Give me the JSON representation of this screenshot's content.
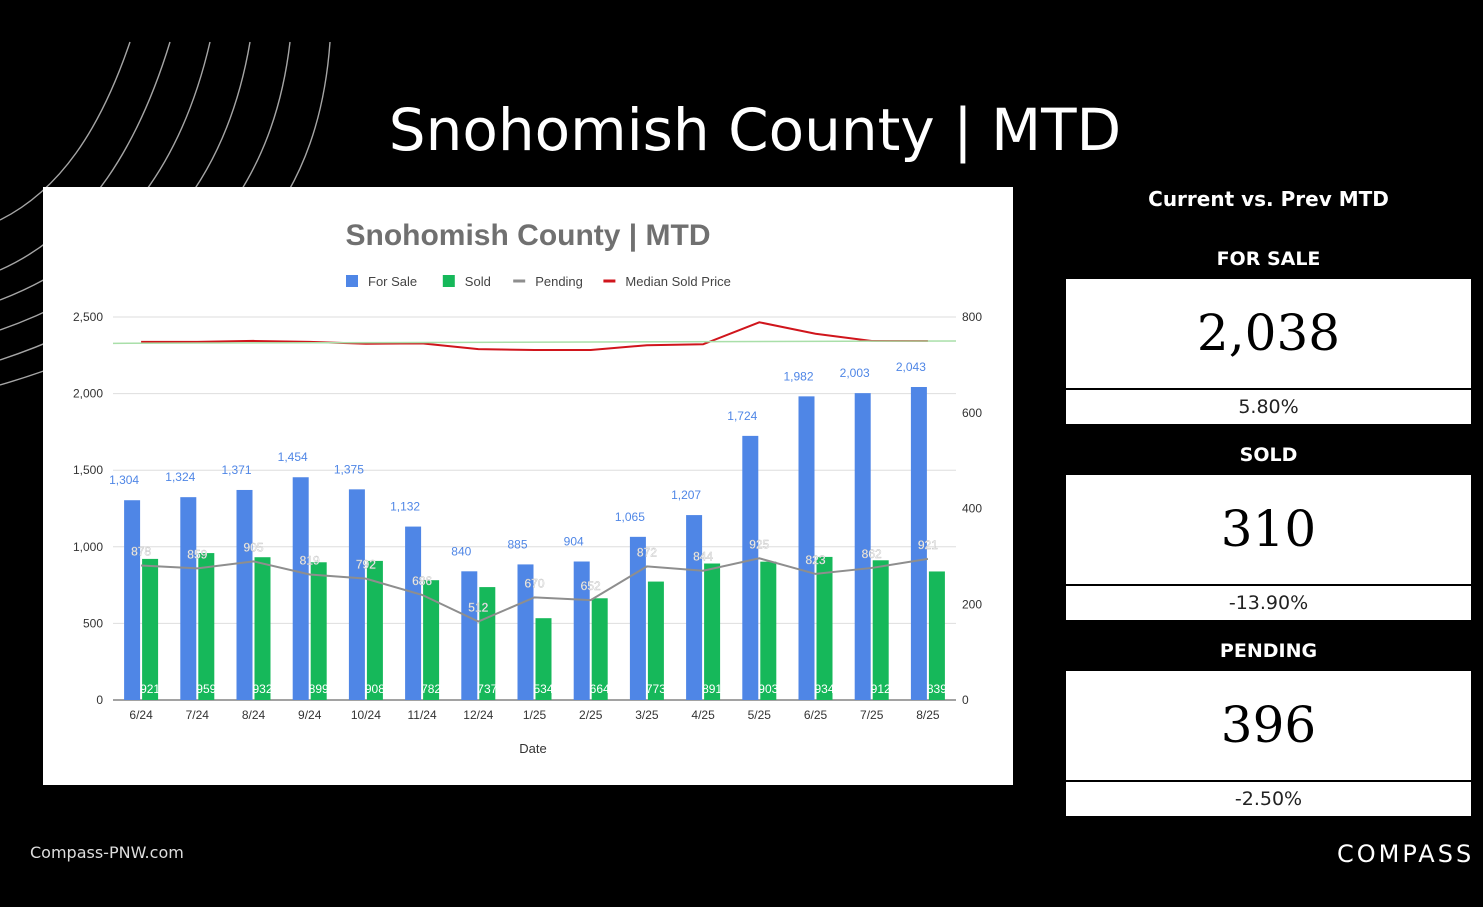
{
  "slide": {
    "title": "Snohomish County | MTD",
    "footer_url": "Compass-PNW.com",
    "brand": "COMPASS"
  },
  "kpis": {
    "heading": "Current vs. Prev MTD",
    "items": [
      {
        "label": "FOR SALE",
        "value": "2,038",
        "change": "5.80%"
      },
      {
        "label": "SOLD",
        "value": "310",
        "change": "-13.90%"
      },
      {
        "label": "PENDING",
        "value": "396",
        "change": "-2.50%"
      }
    ]
  },
  "chart_data": {
    "type": "bar",
    "title": "Snohomish County | MTD",
    "xlabel": "Date",
    "ylabel": "",
    "ylim": [
      0,
      2500
    ],
    "y2lim": [
      0,
      800
    ],
    "yticks": [
      0,
      500,
      1000,
      1500,
      2000,
      2500
    ],
    "y2ticks": [
      0,
      200,
      400,
      600,
      800
    ],
    "categories": [
      "6/24",
      "7/24",
      "8/24",
      "9/24",
      "10/24",
      "11/24",
      "12/24",
      "1/25",
      "2/25",
      "3/25",
      "4/25",
      "5/25",
      "6/25",
      "7/25",
      "8/25"
    ],
    "legend_position": "top",
    "grid": true,
    "series": [
      {
        "name": "For Sale",
        "kind": "bar",
        "color": "#4f86e6",
        "values": [
          1304,
          1324,
          1371,
          1454,
          1375,
          1132,
          840,
          885,
          904,
          1065,
          1207,
          1724,
          1982,
          2003,
          2043
        ]
      },
      {
        "name": "Sold",
        "kind": "bar",
        "color": "#16b85a",
        "values": [
          921,
          959,
          932,
          899,
          908,
          782,
          737,
          534,
          664,
          773,
          891,
          903,
          934,
          912,
          839
        ]
      },
      {
        "name": "Pending",
        "kind": "line",
        "color": "#8e8e8e",
        "values": [
          878,
          859,
          905,
          819,
          792,
          686,
          512,
          670,
          652,
          872,
          844,
          925,
          823,
          862,
          921
        ]
      },
      {
        "name": "Median Sold Price",
        "kind": "line",
        "axis": "right",
        "color": "#d0151c",
        "values": [
          748,
          748,
          750,
          748,
          744,
          745,
          733,
          731,
          731,
          741,
          743,
          789,
          765,
          750,
          750
        ]
      }
    ]
  }
}
